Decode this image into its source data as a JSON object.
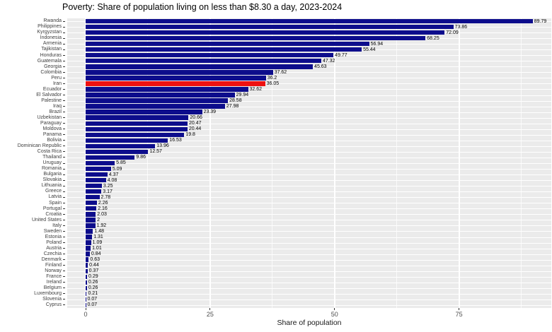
{
  "chart_data": {
    "type": "bar",
    "orientation": "horizontal",
    "title": "Poverty: Share of population living on less than $8.30 a day, 2023-2024",
    "xlabel": "Share of population",
    "ylabel": "",
    "xlim": [
      0,
      93.5
    ],
    "x_ticks": [
      0,
      25,
      50,
      75
    ],
    "minor_grid_values": [
      12.5,
      37.5,
      62.5,
      87.5
    ],
    "grid": true,
    "legend": false,
    "panel_background": "#ebebeb",
    "gridline_color": "#ffffff",
    "bar_color": "#0d0d8c",
    "highlight_color": "#ee1111",
    "highlighted_category": "Iran",
    "categories": [
      "Rwanda",
      "Philippines",
      "Kyrgyzstan",
      "Indonesia",
      "Armenia",
      "Tajikistan",
      "Honduras",
      "Guatemala",
      "Georgia",
      "Colombia",
      "Peru",
      "Iran",
      "Ecuador",
      "El Salvador",
      "Palestine",
      "Iraq",
      "Brazil",
      "Uzbekistan",
      "Paraguay",
      "Moldova",
      "Panama",
      "Bolivia",
      "Dominican Republic",
      "Costa Rica",
      "Thailand",
      "Uruguay",
      "Romania",
      "Bulgaria",
      "Slovakia",
      "Lithuania",
      "Greece",
      "Latvia",
      "Spain",
      "Portugal",
      "Croatia",
      "United States",
      "Italy",
      "Sweden",
      "Estonia",
      "Poland",
      "Austria",
      "Czechia",
      "Denmark",
      "Finland",
      "Norway",
      "France",
      "Ireland",
      "Belgium",
      "Luxembourg",
      "Slovenia",
      "Cyprus"
    ],
    "values": [
      89.79,
      73.86,
      72.09,
      68.25,
      56.94,
      55.44,
      49.77,
      47.32,
      45.63,
      37.62,
      36.2,
      36.05,
      32.62,
      29.94,
      28.58,
      27.98,
      23.39,
      20.66,
      20.47,
      20.44,
      19.8,
      16.53,
      13.96,
      12.57,
      9.86,
      5.85,
      5.09,
      4.37,
      4.08,
      3.25,
      3.17,
      2.78,
      2.26,
      2.16,
      2.03,
      2,
      1.92,
      1.48,
      1.31,
      1.09,
      1.01,
      0.84,
      0.63,
      0.44,
      0.37,
      0.29,
      0.26,
      0.26,
      0.21,
      0.07,
      0.07
    ]
  }
}
